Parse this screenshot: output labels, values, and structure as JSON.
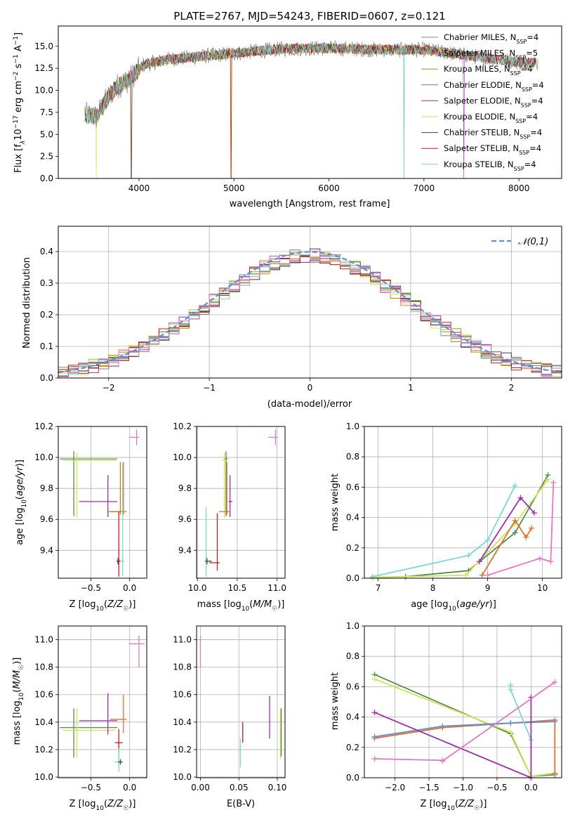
{
  "chart_data": [
    {
      "type": "line",
      "id": "spectrum",
      "title": "PLATE=2767, MJD=54243, FIBERID=0607, z=0.121",
      "xlabel": "wavelength [Angstrom, rest frame]",
      "ylabel": "Flux [f_λ 10^-17 erg cm^-2 s^-1 A^-1]",
      "xlim": [
        3150,
        8450
      ],
      "ylim": [
        0,
        17.3
      ],
      "xticks": [
        4000,
        5000,
        6000,
        7000,
        8000
      ],
      "yticks": [
        0.0,
        2.5,
        5.0,
        7.5,
        10.0,
        12.5,
        15.0
      ],
      "legend_position": "right",
      "series": [
        {
          "name": "Chabrier MILES, N_SSP=4",
          "color": "#808080"
        },
        {
          "name": "Salpeter MILES, N_SSP=5",
          "color": "#e0712c"
        },
        {
          "name": "Kroupa MILES, N_SSP=4",
          "color": "#b8860b"
        },
        {
          "name": "Chabrier ELODIE, N_SSP=4",
          "color": "#4f8f4f"
        },
        {
          "name": "Salpeter ELODIE, N_SSP=4",
          "color": "#9b2fae"
        },
        {
          "name": "Kroupa ELODIE, N_SSP=4",
          "color": "#d4e157"
        },
        {
          "name": "Chabrier STELIB, N_SSP=4",
          "color": "#404040"
        },
        {
          "name": "Salpeter STELIB, N_SSP=4",
          "color": "#b22222"
        },
        {
          "name": "Kroupa STELIB, N_SSP=4",
          "color": "#7fd4d4"
        }
      ],
      "continuum": {
        "x": [
          3430,
          3550,
          3650,
          3750,
          3900,
          4050,
          4300,
          4600,
          5000,
          5500,
          6000,
          6500,
          7000,
          7500,
          8000,
          8200
        ],
        "y": [
          7.2,
          7.0,
          8.8,
          10.3,
          11.3,
          12.9,
          13.5,
          13.8,
          14.2,
          14.7,
          14.8,
          14.6,
          14.6,
          13.9,
          13.2,
          13.1
        ]
      },
      "dips": [
        3550,
        3920,
        4970,
        6790,
        7420
      ]
    },
    {
      "type": "line",
      "id": "residuals",
      "xlabel": "(data-model)/error",
      "ylabel": "Normed distribution",
      "xlim": [
        -2.5,
        2.5
      ],
      "ylim": [
        0,
        0.48
      ],
      "xticks": [
        -2,
        -1,
        0,
        1,
        2
      ],
      "yticks": [
        0.0,
        0.1,
        0.2,
        0.3,
        0.4
      ],
      "legend": "𝒩(0,1)",
      "legend_position": "top-right",
      "gaussian_color": "#5b8fd6",
      "bin_width": 0.1,
      "grid": true
    },
    {
      "type": "scatter",
      "id": "age-vs-Z",
      "xlabel": "Z [log10(Z/Z☉)]",
      "ylabel": "age [log10(age/yr)]",
      "xlim": [
        -0.92,
        0.22
      ],
      "ylim": [
        9.22,
        10.2
      ],
      "xticks": [
        -0.5,
        0.0
      ],
      "yticks": [
        9.4,
        9.6,
        9.8,
        10.0,
        10.2
      ],
      "points": [
        {
          "x": -0.72,
          "y": 9.99,
          "xerr": [
            0.18,
            0.56
          ],
          "yerr": [
            0.37,
            0.05
          ],
          "color": "#4f8f4f"
        },
        {
          "x": -0.68,
          "y": 9.98,
          "xerr": [
            0.18,
            0.5
          ],
          "yerr": [
            0.37,
            0.05
          ],
          "color": "#d4e157"
        },
        {
          "x": -0.28,
          "y": 9.715,
          "xerr": [
            0.37,
            0.12
          ],
          "yerr": [
            0.1,
            0.17
          ],
          "color": "#9b2fae"
        },
        {
          "x": -0.08,
          "y": 9.65,
          "xerr": [
            0.17,
            0.04
          ],
          "yerr": [
            0.02,
            0.32
          ],
          "color": "#e0712c"
        },
        {
          "x": -0.12,
          "y": 9.65,
          "xerr": [
            0.15,
            0.02
          ],
          "yerr": [
            0.02,
            0.32
          ],
          "color": "#b8860b"
        },
        {
          "x": -0.09,
          "y": 9.33,
          "xerr": [
            0.06,
            0.02
          ],
          "yerr": [
            0.1,
            0.64
          ],
          "color": "#7fd4d4"
        },
        {
          "x": -0.14,
          "y": 9.33,
          "xerr": [
            0.02,
            0.02
          ],
          "yerr": [
            0.1,
            0.32
          ],
          "color": "#b22222"
        },
        {
          "x": -0.15,
          "y": 9.33,
          "xerr": [
            0.02,
            0.01
          ],
          "yerr": [
            0.02,
            0.02
          ],
          "color": "#404040"
        },
        {
          "x": 0.09,
          "y": 10.13,
          "xerr": [
            0.1,
            0.03
          ],
          "yerr": [
            0.05,
            0.05
          ],
          "color": "#e377c2"
        }
      ]
    },
    {
      "type": "scatter",
      "id": "age-vs-mass",
      "xlabel": "mass [log10(M/M☉)]",
      "ylabel": "",
      "xlim": [
        9.99,
        11.1
      ],
      "ylim": [
        9.22,
        10.2
      ],
      "xticks": [
        10.0,
        10.5,
        11.0
      ],
      "yticks": [
        9.4,
        9.6,
        9.8,
        10.0,
        10.2
      ],
      "points": [
        {
          "x": 10.36,
          "y": 9.99,
          "xerr": [
            0.02,
            0.02
          ],
          "yerr": [
            0.37,
            0.05
          ],
          "color": "#4f8f4f"
        },
        {
          "x": 10.34,
          "y": 9.98,
          "xerr": [
            0.03,
            0.03
          ],
          "yerr": [
            0.37,
            0.05
          ],
          "color": "#d4e157"
        },
        {
          "x": 10.41,
          "y": 9.715,
          "xerr": [
            0.02,
            0.03
          ],
          "yerr": [
            0.1,
            0.17
          ],
          "color": "#9b2fae"
        },
        {
          "x": 10.37,
          "y": 9.65,
          "xerr": [
            0.1,
            0.03
          ],
          "yerr": [
            0.02,
            0.32
          ],
          "color": "#e0712c"
        },
        {
          "x": 10.11,
          "y": 9.33,
          "xerr": [
            0.02,
            0.05
          ],
          "yerr": [
            0.1,
            0.35
          ],
          "color": "#7fd4d4"
        },
        {
          "x": 10.25,
          "y": 9.32,
          "xerr": [
            0.1,
            0.03
          ],
          "yerr": [
            0.05,
            0.32
          ],
          "color": "#b22222"
        },
        {
          "x": 10.12,
          "y": 9.33,
          "xerr": [
            0.02,
            0.06
          ],
          "yerr": [
            0.02,
            0.02
          ],
          "color": "#404040"
        },
        {
          "x": 10.98,
          "y": 10.13,
          "xerr": [
            0.09,
            0.03
          ],
          "yerr": [
            0.05,
            0.05
          ],
          "color": "#e377c2"
        }
      ]
    },
    {
      "type": "line",
      "id": "weight-vs-age",
      "xlabel": "age  [log10(age/yr)]",
      "ylabel": "mass weight",
      "xlim": [
        6.75,
        10.35
      ],
      "ylim": [
        0,
        1.0
      ],
      "xticks": [
        7,
        8,
        9,
        10
      ],
      "yticks": [
        0.0,
        0.2,
        0.4,
        0.6,
        0.8,
        1.0
      ],
      "grid": true,
      "series": [
        {
          "color": "#4f8f4f",
          "x": [
            6.9,
            7.5,
            8.65,
            9.5,
            10.1
          ],
          "y": [
            0.005,
            0.01,
            0.05,
            0.3,
            0.68
          ]
        },
        {
          "color": "#d4e157",
          "x": [
            6.9,
            8.6,
            9.5,
            10.1
          ],
          "y": [
            0.005,
            0.02,
            0.36,
            0.65
          ]
        },
        {
          "color": "#e0712c",
          "x": [
            8.9,
            9.5,
            9.7,
            9.8
          ],
          "y": [
            0.02,
            0.38,
            0.27,
            0.33
          ]
        },
        {
          "color": "#7fd4d4",
          "x": [
            6.9,
            8.65,
            9.0,
            9.5
          ],
          "y": [
            0.01,
            0.15,
            0.25,
            0.61
          ]
        },
        {
          "color": "#9b2fae",
          "x": [
            8.85,
            9.6,
            9.85
          ],
          "y": [
            0.11,
            0.53,
            0.43
          ]
        },
        {
          "color": "#e377c2",
          "x": [
            9.0,
            9.95,
            10.15,
            10.2
          ],
          "y": [
            0.02,
            0.13,
            0.11,
            0.63
          ]
        }
      ]
    },
    {
      "type": "scatter",
      "id": "mass-vs-Z",
      "xlabel": "Z [log10(Z/Z☉)]",
      "ylabel": "mass [log10(M/M☉)]",
      "xlim": [
        -0.92,
        0.22
      ],
      "ylim": [
        9.995,
        11.1
      ],
      "xticks": [
        -0.5,
        0.0
      ],
      "yticks": [
        10.0,
        10.2,
        10.4,
        10.6,
        10.8,
        11.0
      ],
      "points": [
        {
          "x": -0.72,
          "y": 10.36,
          "xerr": [
            0.18,
            0.56
          ],
          "yerr": [
            0.22,
            0.14
          ],
          "color": "#4f8f4f"
        },
        {
          "x": -0.68,
          "y": 10.34,
          "xerr": [
            0.18,
            0.5
          ],
          "yerr": [
            0.2,
            0.16
          ],
          "color": "#d4e157"
        },
        {
          "x": -0.28,
          "y": 10.41,
          "xerr": [
            0.37,
            0.12
          ],
          "yerr": [
            0.1,
            0.2
          ],
          "color": "#9b2fae"
        },
        {
          "x": -0.08,
          "y": 10.42,
          "xerr": [
            0.17,
            0.04
          ],
          "yerr": [
            0.1,
            0.18
          ],
          "color": "#e0712c"
        },
        {
          "x": -0.14,
          "y": 10.25,
          "xerr": [
            0.05,
            0.05
          ],
          "yerr": [
            0.1,
            0.1
          ],
          "color": "#b22222"
        },
        {
          "x": -0.14,
          "y": 10.11,
          "xerr": [
            0.06,
            0.04
          ],
          "yerr": [
            0.07,
            0.1
          ],
          "color": "#7fd4d4"
        },
        {
          "x": -0.12,
          "y": 10.11,
          "xerr": [
            0.03,
            0.03
          ],
          "yerr": [
            0.02,
            0.02
          ],
          "color": "#404040"
        },
        {
          "x": 0.12,
          "y": 10.97,
          "xerr": [
            0.13,
            0.07
          ],
          "yerr": [
            0.17,
            0.06
          ],
          "color": "#e377c2"
        }
      ]
    },
    {
      "type": "scatter",
      "id": "mass-vs-ebv",
      "xlabel": "E(B-V)",
      "ylabel": "",
      "xlim": [
        -0.005,
        0.11
      ],
      "ylim": [
        9.995,
        11.1
      ],
      "xticks": [
        0.0,
        0.05,
        0.1
      ],
      "yticks": [
        10.0,
        10.2,
        10.4,
        10.6,
        10.8,
        11.0
      ],
      "points": [
        {
          "x": 0.0,
          "y": 10.97,
          "yerr": [
            0.17,
            0.06
          ],
          "color": "#e377c2"
        },
        {
          "x": 0.052,
          "y": 10.18,
          "yerr": [
            0.11,
            0.1
          ],
          "color": "#7fd4d4"
        },
        {
          "x": 0.055,
          "y": 10.3,
          "yerr": [
            0.05,
            0.1
          ],
          "color": "#b22222"
        },
        {
          "x": 0.09,
          "y": 10.45,
          "yerr": [
            0.17,
            0.14
          ],
          "color": "#9b2fae"
        },
        {
          "x": 0.104,
          "y": 10.32,
          "yerr": [
            0.19,
            0.18
          ],
          "color": "#d4e157"
        },
        {
          "x": 0.105,
          "y": 10.35,
          "yerr": [
            0.2,
            0.15
          ],
          "color": "#4f8f4f"
        }
      ]
    },
    {
      "type": "line",
      "id": "weight-vs-Z",
      "xlabel": "Z [log10(Z/Z☉)]",
      "ylabel": "mass weight",
      "xlim": [
        -2.45,
        0.45
      ],
      "ylim": [
        0,
        1.0
      ],
      "xticks": [
        -2.0,
        -1.5,
        -1.0,
        -0.5,
        0.0
      ],
      "yticks": [
        0.0,
        0.2,
        0.4,
        0.6,
        0.8,
        1.0
      ],
      "grid": true,
      "series": [
        {
          "color": "#4f8f4f",
          "x": [
            -2.3,
            -0.3,
            0.0,
            0.35
          ],
          "y": [
            0.68,
            0.29,
            0.01,
            0.02
          ]
        },
        {
          "color": "#d4e157",
          "x": [
            -2.3,
            -0.3,
            0.0,
            0.35
          ],
          "y": [
            0.65,
            0.3,
            0.01,
            0.03
          ]
        },
        {
          "color": "#e0712c",
          "x": [
            -2.3,
            -1.3,
            -0.3,
            0.35,
            0.35
          ],
          "y": [
            0.26,
            0.33,
            0.36,
            0.38,
            0.03
          ]
        },
        {
          "color": "#5b8fd6",
          "x": [
            -2.3,
            -1.3,
            -0.3,
            0.35
          ],
          "y": [
            0.27,
            0.34,
            0.36,
            0.37
          ]
        },
        {
          "color": "#7fd4d4",
          "x": [
            -0.3,
            -0.3,
            0.0,
            0.0
          ],
          "y": [
            0.61,
            0.58,
            0.25,
            0.0
          ]
        },
        {
          "color": "#9b2fae",
          "x": [
            -2.3,
            0.0,
            0.0
          ],
          "y": [
            0.43,
            0.0,
            0.53
          ]
        },
        {
          "color": "#e377c2",
          "x": [
            -2.3,
            -1.3,
            -1.3,
            0.35
          ],
          "y": [
            0.125,
            0.115,
            0.11,
            0.63
          ]
        }
      ]
    }
  ]
}
